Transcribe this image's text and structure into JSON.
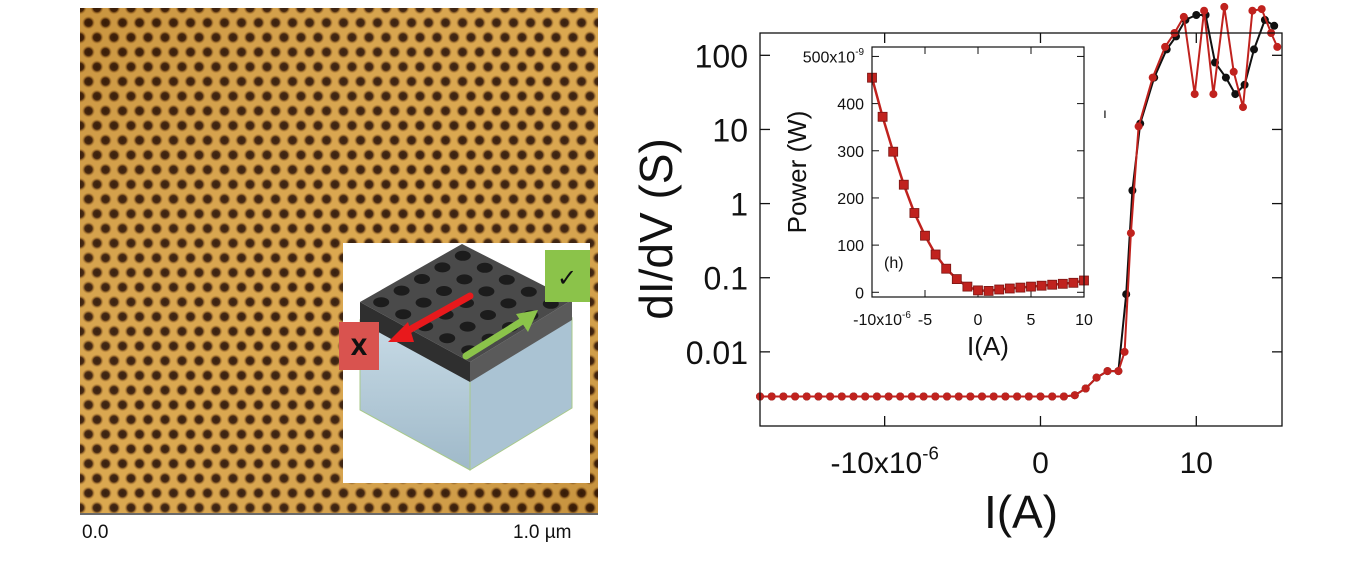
{
  "afm_image": {
    "scale_start": "0.0",
    "scale_end": "1.0 µm",
    "schematic": {
      "wrong_direction_label": "X",
      "right_direction_label": "✓",
      "colors": {
        "wrong": "#d9534f",
        "right": "#8bc34a",
        "arrow_wrong": "#e8191c",
        "arrow_right": "#8bc34a",
        "top_surface": "#4a4a4a",
        "substrate": "#b9cfdc"
      }
    },
    "colors": {
      "light": "#e7b553",
      "dark": "#2a1303",
      "mid": "#b0721f"
    }
  },
  "chart_data": [
    {
      "type": "line",
      "xlabel": "I(A)",
      "ylabel": "dI/dV (S)",
      "yscale": "log",
      "xlim": [
        -18,
        15.5
      ],
      "ylim": [
        0.001,
        200
      ],
      "x_ticks": [
        -10,
        0,
        10
      ],
      "x_tick_labels": [
        "-10x10",
        "0",
        "10"
      ],
      "x_tick_exponent": "-6",
      "y_ticks": [
        0.01,
        0.1,
        1,
        10,
        100
      ],
      "y_tick_labels": [
        "0.01",
        "0.1",
        "1",
        "10",
        "100"
      ],
      "series": [
        {
          "color": "#111111",
          "x": [
            -18,
            -17.25,
            -16.5,
            -15.75,
            -15,
            -14.25,
            -13.5,
            -12.75,
            -12,
            -11.25,
            -10.5,
            -9.75,
            -9,
            -8.25,
            -7.5,
            -6.75,
            -6,
            -5.25,
            -4.5,
            -3.75,
            -3,
            -2.25,
            -1.5,
            -0.75,
            0,
            0.75,
            1.5,
            2.2,
            2.9,
            3.6,
            4.3,
            5.0,
            5.5,
            5.9,
            6.4,
            7.3,
            8.1,
            8.7,
            9.3,
            10.0,
            10.6,
            11.2,
            11.9,
            12.5,
            13.1,
            13.7,
            14.4,
            15.0
          ],
          "y": [
            0.0025,
            0.0025,
            0.0025,
            0.0025,
            0.0025,
            0.0025,
            0.0025,
            0.0025,
            0.0025,
            0.0025,
            0.0025,
            0.0025,
            0.0025,
            0.0025,
            0.0025,
            0.0025,
            0.0025,
            0.0025,
            0.0025,
            0.0025,
            0.0025,
            0.0025,
            0.0025,
            0.0025,
            0.0025,
            0.0025,
            0.0025,
            0.0026,
            0.0032,
            0.0045,
            0.0055,
            0.0055,
            0.06,
            1.5,
            12,
            50,
            120,
            180,
            300,
            350,
            350,
            80,
            50,
            30,
            40,
            120,
            300,
            250
          ]
        },
        {
          "color": "#c0221e",
          "x": [
            -18,
            -17.25,
            -16.5,
            -15.75,
            -15,
            -14.25,
            -13.5,
            -12.75,
            -12,
            -11.25,
            -10.5,
            -9.75,
            -9,
            -8.25,
            -7.5,
            -6.75,
            -6,
            -5.25,
            -4.5,
            -3.75,
            -3,
            -2.25,
            -1.5,
            -0.75,
            0,
            0.75,
            1.5,
            2.2,
            2.9,
            3.6,
            4.3,
            5.0,
            5.4,
            5.8,
            6.3,
            7.2,
            8.0,
            8.6,
            9.2,
            9.9,
            10.5,
            11.1,
            11.8,
            12.4,
            13.0,
            13.6,
            14.2,
            14.8,
            15.2
          ],
          "y": [
            0.0025,
            0.0025,
            0.0025,
            0.0025,
            0.0025,
            0.0025,
            0.0025,
            0.0025,
            0.0025,
            0.0025,
            0.0025,
            0.0025,
            0.0025,
            0.0025,
            0.0025,
            0.0025,
            0.0025,
            0.0025,
            0.0025,
            0.0025,
            0.0025,
            0.0025,
            0.0025,
            0.0025,
            0.0025,
            0.0025,
            0.0025,
            0.0026,
            0.0032,
            0.0045,
            0.0055,
            0.0055,
            0.01,
            0.4,
            11,
            50,
            130,
            200,
            330,
            30,
            400,
            30,
            450,
            60,
            20,
            400,
            420,
            200,
            130
          ]
        }
      ]
    },
    {
      "type": "line",
      "annotation": "(h)",
      "xlabel": "I(A)",
      "ylabel": "Power (W)",
      "xlim": [
        -10,
        10
      ],
      "ylim": [
        -10,
        520
      ],
      "x_ticks": [
        -10,
        -5,
        0,
        5,
        10
      ],
      "x_tick_labels": [
        "-10x10",
        "-5",
        "0",
        "5",
        "10"
      ],
      "x_tick_exponent": "-6",
      "y_ticks": [
        0,
        100,
        200,
        300,
        400,
        500
      ],
      "y_tick_labels": [
        "0",
        "100",
        "200",
        "300",
        "400",
        "500x10"
      ],
      "y_tick_exponent": "-9",
      "series": [
        {
          "color": "#c0221e",
          "x": [
            -10,
            -9,
            -8,
            -7,
            -6,
            -5,
            -4,
            -3,
            -2,
            -1,
            0,
            1,
            2,
            3,
            4,
            5,
            6,
            7,
            8,
            9,
            10
          ],
          "y": [
            455,
            372,
            298,
            228,
            168,
            120,
            80,
            50,
            28,
            12,
            4,
            3,
            6,
            8,
            10,
            12,
            14,
            16,
            18,
            20,
            25
          ]
        }
      ]
    }
  ]
}
